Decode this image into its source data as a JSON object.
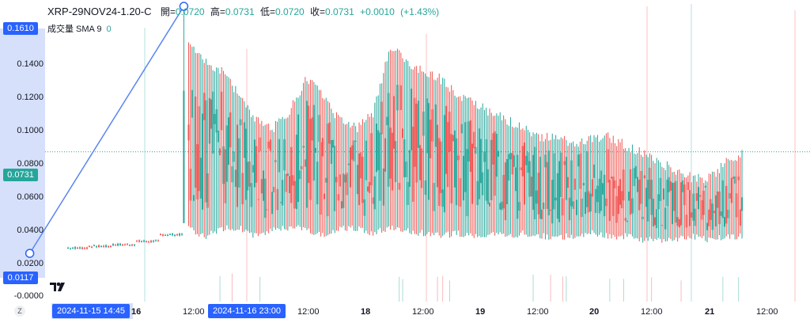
{
  "header": {
    "symbol": "XRP-29NOV24-1.20-C",
    "open_label": "開=",
    "open": "0.0720",
    "high_label": "高=",
    "high": "0.0731",
    "low_label": "低=",
    "low": "0.0720",
    "close_label": "收=",
    "close": "0.0731",
    "change": "+0.0010",
    "change_pct": "(+1.43%)"
  },
  "volume_legend": {
    "label": "成交量 SMA 9",
    "value": "0"
  },
  "colors": {
    "up": "#26a69a",
    "down": "#ef5350",
    "tool": "#5b86f0",
    "accent": "#2962ff",
    "price_tag": "#26a69a"
  },
  "y_labels": [
    "0.1400",
    "0.1200",
    "0.1000",
    "0.0800",
    "0.0600",
    "0.0400",
    "0.0200",
    "-0.0000"
  ],
  "y_tags": {
    "top": "0.1610",
    "current": "0.0731",
    "bottom": "0.0117"
  },
  "x_labels": [
    "16",
    "12:00",
    "12:00",
    "18",
    "12:00",
    "19",
    "12:00",
    "20",
    "12:00",
    "21",
    "12:00"
  ],
  "x_tags": {
    "start": "2024-11-15  14:45",
    "end": "2024-11-16  23:00"
  },
  "z_button": "Z",
  "chart_data": {
    "type": "candlestick",
    "ylim": [
      -0.005,
      0.165
    ],
    "x_range": [
      "2024-11-15 12:00",
      "2024-11-21 20:00"
    ],
    "current_price": 0.0731,
    "grid": false,
    "trend_line": {
      "start": {
        "time": "2024-11-15 14:45",
        "price": 0.0117
      },
      "end": {
        "time": "2024-11-16 23:00",
        "price": 0.161
      }
    },
    "series": [
      {
        "segment": "pre-spike",
        "time_range": [
          "2024-11-15 12:00",
          "2024-11-16 23:00"
        ],
        "price_levels": [
          0.013,
          0.014,
          0.015,
          0.016,
          0.017,
          0.019,
          0.023
        ]
      },
      {
        "segment": "spike",
        "time": "2024-11-16 23:00",
        "open": 0.03,
        "high": 0.161,
        "low": 0.03,
        "close": 0.11
      },
      {
        "segment": "post-spike",
        "time_range": [
          "2024-11-17 00:00",
          "2024-11-21 20:00"
        ],
        "envelope_high": [
          0.14,
          0.13,
          0.125,
          0.11,
          0.095,
          0.09,
          0.1,
          0.12,
          0.11,
          0.095,
          0.09,
          0.1,
          0.14,
          0.13,
          0.125,
          0.12,
          0.11,
          0.105,
          0.1,
          0.095,
          0.09,
          0.085,
          0.085,
          0.08,
          0.085,
          0.085,
          0.08,
          0.075,
          0.07,
          0.065,
          0.06,
          0.06,
          0.07,
          0.075
        ],
        "envelope_low": [
          0.025,
          0.02,
          0.025,
          0.025,
          0.02,
          0.025,
          0.025,
          0.025,
          0.02,
          0.025,
          0.025,
          0.022,
          0.025,
          0.023,
          0.022,
          0.02,
          0.022,
          0.02,
          0.022,
          0.02,
          0.022,
          0.02,
          0.02,
          0.02,
          0.022,
          0.02,
          0.02,
          0.018,
          0.018,
          0.018,
          0.02,
          0.018,
          0.02,
          0.02
        ]
      }
    ]
  }
}
